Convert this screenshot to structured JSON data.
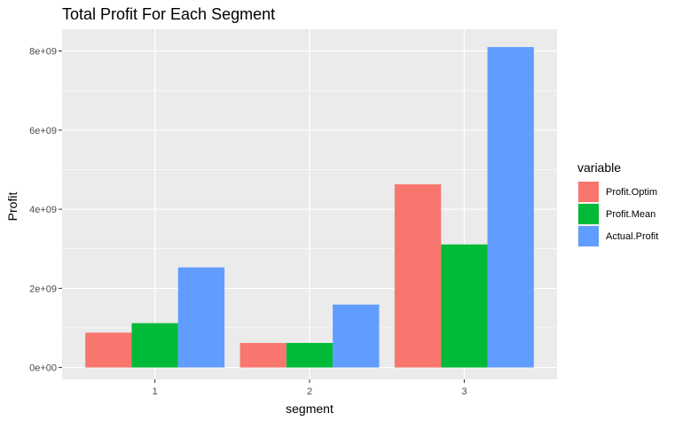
{
  "chart_data": {
    "type": "bar",
    "title": "Total Profit For Each Segment",
    "xlabel": "segment",
    "ylabel": "Profit",
    "categories": [
      "1",
      "2",
      "3"
    ],
    "series": [
      {
        "name": "Profit.Optim",
        "color": "#F8766D",
        "values": [
          880000000,
          620000000,
          4630000000
        ]
      },
      {
        "name": "Profit.Mean",
        "color": "#00BA38",
        "values": [
          1120000000,
          620000000,
          3110000000
        ]
      },
      {
        "name": "Actual.Profit",
        "color": "#619CFF",
        "values": [
          2530000000,
          1590000000,
          8100000000
        ]
      }
    ],
    "ylim": [
      -300000000,
      8550000000
    ],
    "yticks": [
      {
        "value": 0,
        "label": "0e+00"
      },
      {
        "value": 2000000000,
        "label": "2e+09"
      },
      {
        "value": 4000000000,
        "label": "4e+09"
      },
      {
        "value": 6000000000,
        "label": "6e+09"
      },
      {
        "value": 8000000000,
        "label": "8e+09"
      }
    ],
    "legend": {
      "title": "variable",
      "position": "right"
    },
    "grid": true,
    "panel_background": "#EBEBEB"
  }
}
